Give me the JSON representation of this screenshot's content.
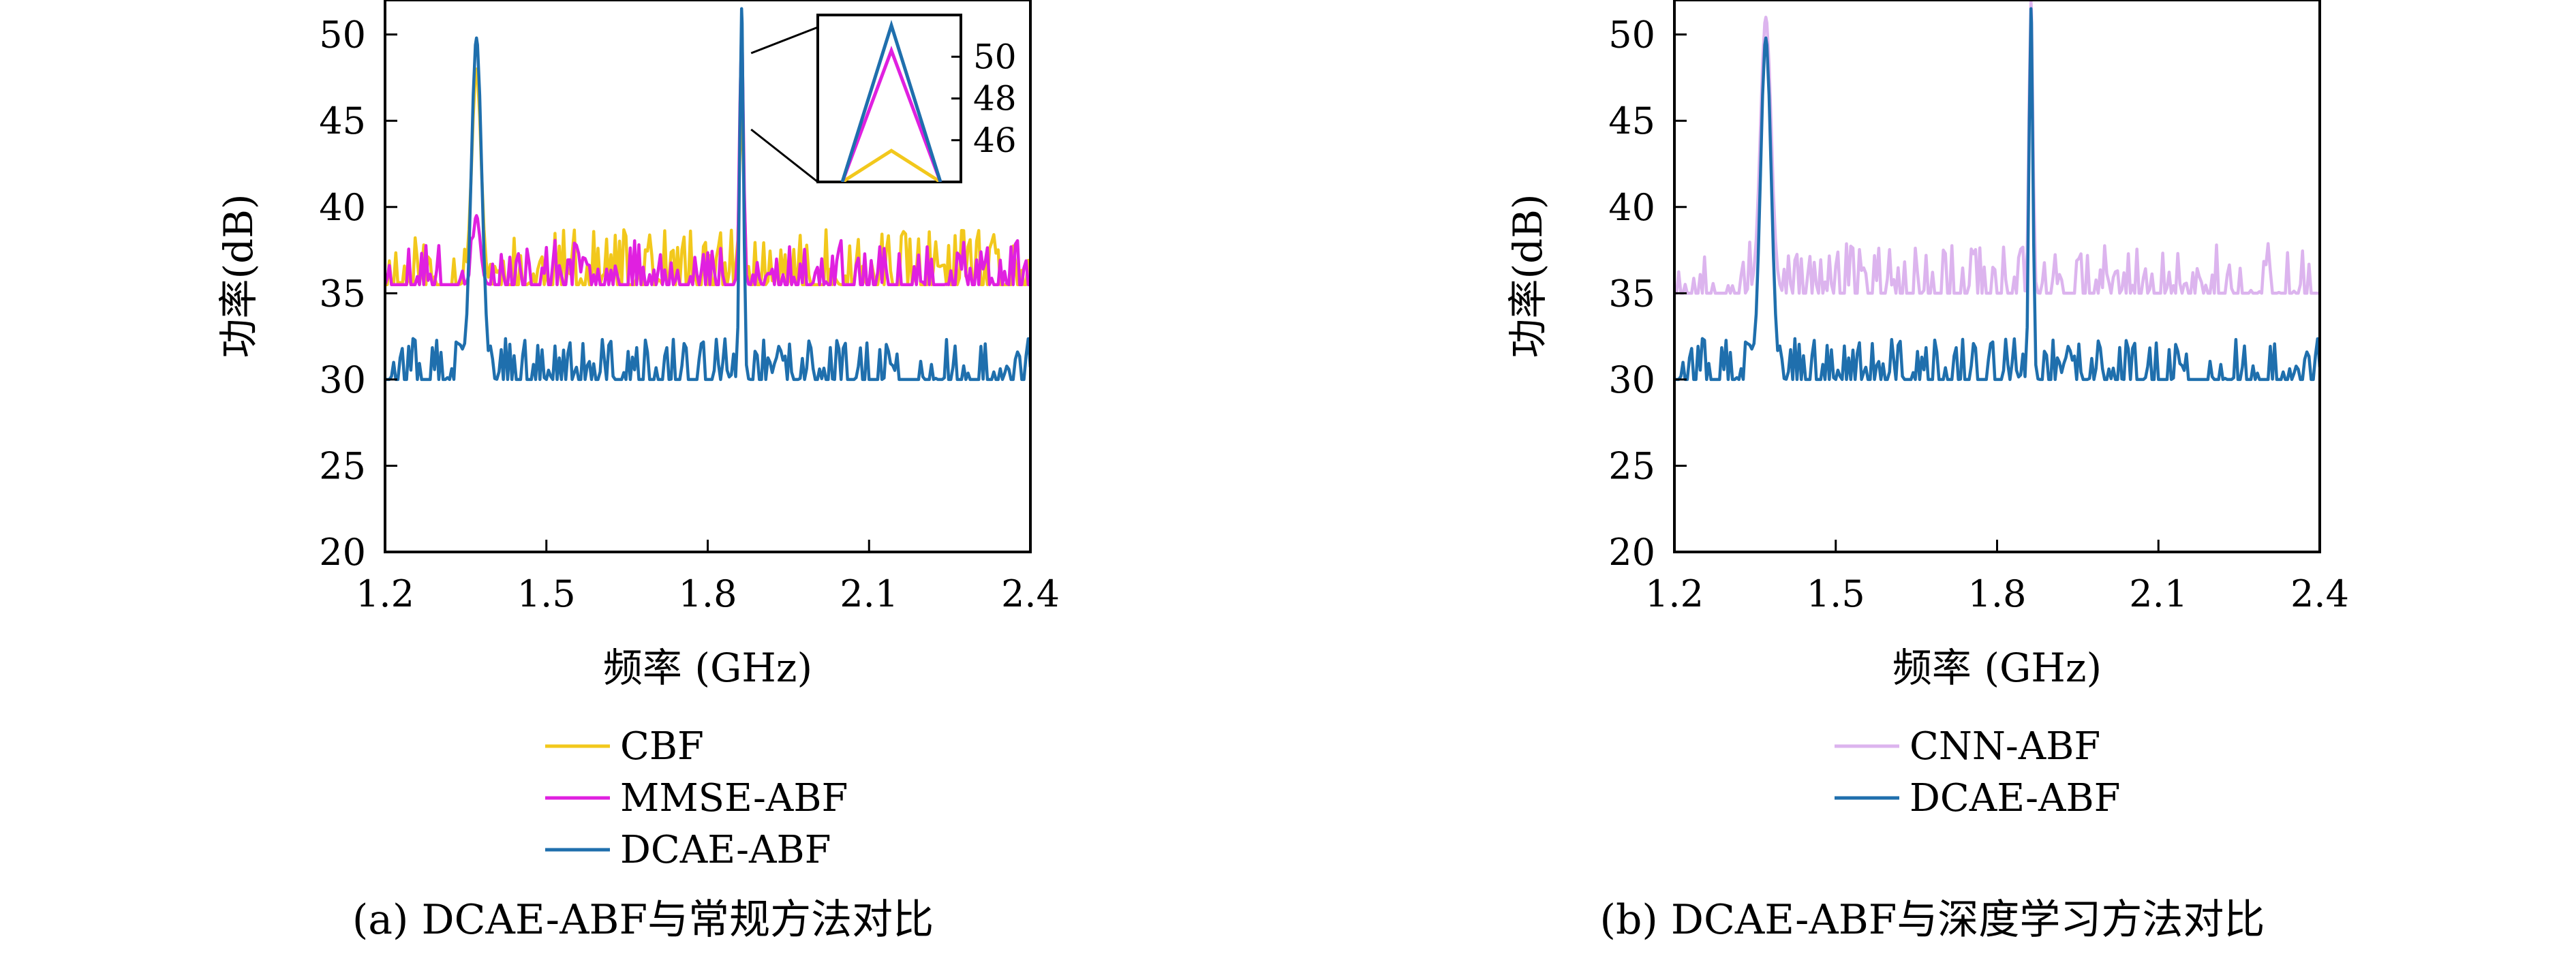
{
  "chart_data": [
    {
      "type": "line",
      "xlabel": "频率 (GHz)",
      "ylabel": "功率(dB)",
      "caption": "(a) DCAE-ABF与常规方法对比",
      "xlim": [
        1.2,
        2.4
      ],
      "ylim": [
        20,
        52
      ],
      "xticks": [
        "1.2",
        "1.5",
        "1.8",
        "2.1",
        "2.4"
      ],
      "yticks": [
        "20",
        "25",
        "30",
        "35",
        "40",
        "45",
        "50"
      ],
      "legend_position": "below",
      "inset": {
        "xlim": [
          1.845,
          1.88
        ],
        "ylim": [
          44,
          52
        ],
        "yticks": [
          "46",
          "48",
          "50"
        ]
      },
      "series": [
        {
          "name": "CBF",
          "color": "#f2c81c",
          "seed": 11,
          "base": 35.5,
          "amp": 3.2,
          "peaks": [
            {
              "x": 1.37,
              "h": 48.0,
              "w": 0.012
            },
            {
              "x": 1.863,
              "h": 45.5,
              "w": 0.006
            }
          ]
        },
        {
          "name": "MMSE-ABF",
          "color": "#e020e0",
          "seed": 23,
          "base": 35.5,
          "amp": 2.6,
          "peaks": [
            {
              "x": 1.37,
              "h": 39.5,
              "w": 0.01
            },
            {
              "x": 1.863,
              "h": 50.3,
              "w": 0.005
            }
          ]
        },
        {
          "name": "DCAE-ABF",
          "color": "#1f6fad",
          "seed": 37,
          "base": 30.0,
          "amp": 2.4,
          "peaks": [
            {
              "x": 1.37,
              "h": 49.8,
              "w": 0.014
            },
            {
              "x": 1.863,
              "h": 51.5,
              "w": 0.005
            }
          ]
        }
      ]
    },
    {
      "type": "line",
      "xlabel": "频率 (GHz)",
      "ylabel": "功率(dB)",
      "caption": "(b) DCAE-ABF与深度学习方法对比",
      "xlim": [
        1.2,
        2.4
      ],
      "ylim": [
        20,
        52
      ],
      "xticks": [
        "1.2",
        "1.5",
        "1.8",
        "2.1",
        "2.4"
      ],
      "yticks": [
        "20",
        "25",
        "30",
        "35",
        "40",
        "45",
        "50"
      ],
      "legend_position": "below",
      "series": [
        {
          "name": "CNN-ABF",
          "color": "#dcb4ee",
          "seed": 53,
          "base": 35.0,
          "amp": 3.0,
          "peaks": [
            {
              "x": 1.37,
              "h": 51.0,
              "w": 0.014
            },
            {
              "x": 1.863,
              "h": 52.0,
              "w": 0.005
            }
          ]
        },
        {
          "name": "DCAE-ABF",
          "color": "#1f6fad",
          "seed": 37,
          "base": 30.0,
          "amp": 2.4,
          "peaks": [
            {
              "x": 1.37,
              "h": 49.8,
              "w": 0.014
            },
            {
              "x": 1.863,
              "h": 51.5,
              "w": 0.005
            }
          ]
        }
      ]
    }
  ]
}
